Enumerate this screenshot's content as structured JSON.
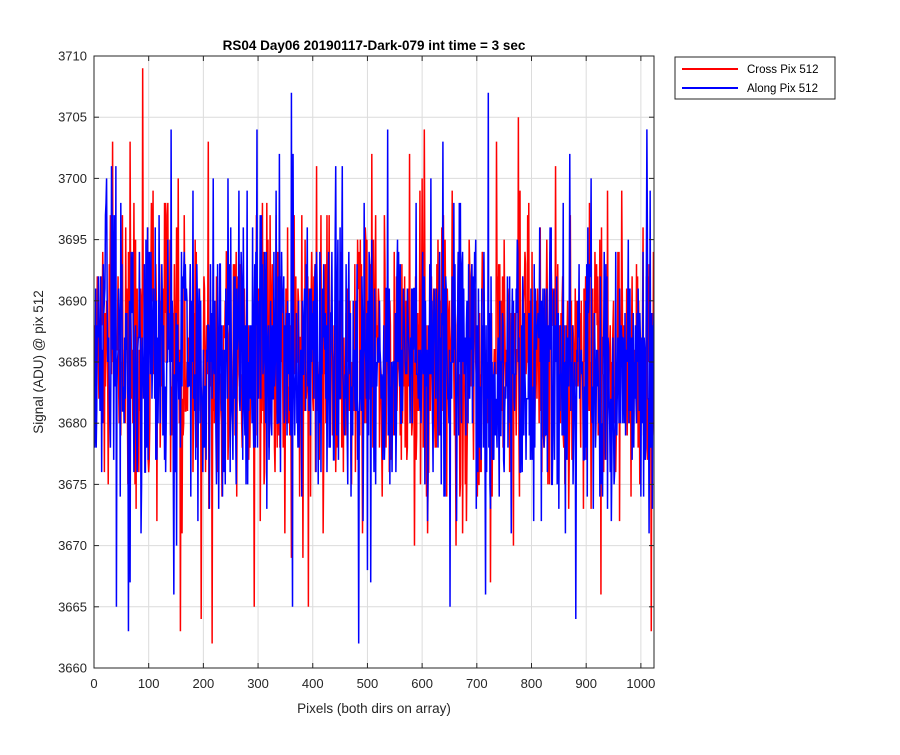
{
  "chart_data": {
    "type": "line",
    "title": "RS04 Day06 20190117-Dark-079 int time = 3 sec",
    "xlabel": "Pixels (both dirs on array)",
    "ylabel": "Signal (ADU) @ pix 512",
    "xlim": [
      0,
      1024
    ],
    "ylim": [
      3660,
      3710
    ],
    "xticks": [
      0,
      100,
      200,
      300,
      400,
      500,
      600,
      700,
      800,
      900,
      1000
    ],
    "yticks": [
      3660,
      3665,
      3670,
      3675,
      3680,
      3685,
      3690,
      3695,
      3700,
      3705,
      3710
    ],
    "grid": true,
    "legend_position": "outside-top-right",
    "series": [
      {
        "name": "Cross Pix 512",
        "color": "#ff0000",
        "mean": 3685,
        "std": 6.2,
        "seed": 12345,
        "n_points": 1024,
        "extremes": [
          [
            88,
            3709
          ],
          [
            775,
            3705
          ],
          [
            33,
            3703
          ],
          [
            65,
            3703
          ],
          [
            215,
            3662
          ],
          [
            157,
            3663
          ],
          [
            1018,
            3663
          ],
          [
            195,
            3664
          ],
          [
            292,
            3665
          ],
          [
            391,
            3665
          ]
        ]
      },
      {
        "name": "Along Pix 512",
        "color": "#0000ff",
        "mean": 3685,
        "std": 6.2,
        "seed": 67890,
        "n_points": 1024,
        "extremes": [
          [
            720,
            3707
          ],
          [
            360,
            3707
          ],
          [
            880,
            3704
          ],
          [
            140,
            3704
          ],
          [
            483,
            3662
          ],
          [
            62,
            3663
          ],
          [
            40,
            3665
          ],
          [
            880,
            3664
          ],
          [
            650,
            3665
          ],
          [
            715,
            3666
          ],
          [
            362,
            3665
          ]
        ]
      }
    ]
  }
}
